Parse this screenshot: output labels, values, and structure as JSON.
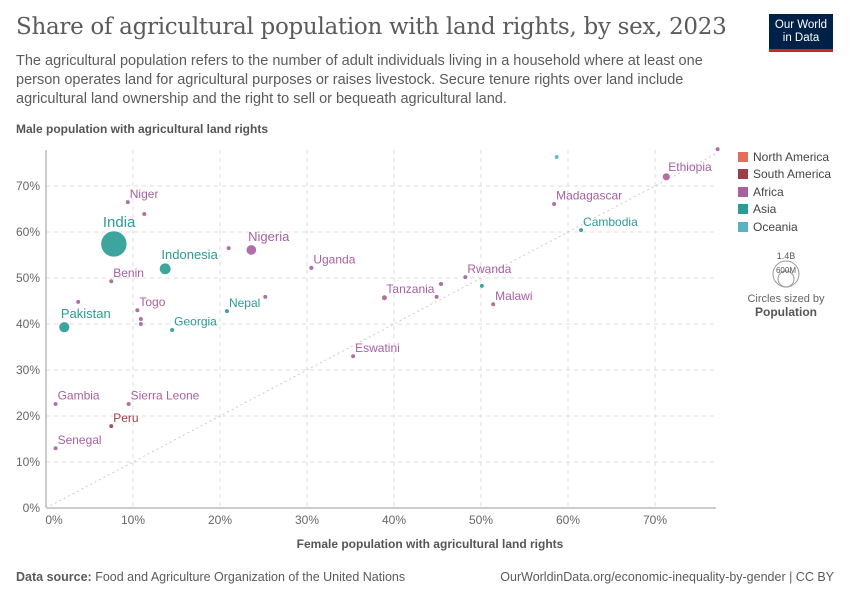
{
  "header": {
    "title": "Share of agricultural population with land rights, by sex, 2023",
    "subtitle": "The agricultural population refers to the number of adult individuals living in a household where at least one person operates land for agricultural purposes or raises livestock. Secure tenure rights over land include agricultural land ownership and the right to sell or bequeath agricultural land.",
    "logo": "Our World in Data"
  },
  "legend": {
    "items": [
      {
        "label": "North America",
        "color": "#E56E5A"
      },
      {
        "label": "South America",
        "color": "#9A3E4A"
      },
      {
        "label": "Africa",
        "color": "#A8609F"
      },
      {
        "label": "Asia",
        "color": "#2A9C94"
      },
      {
        "label": "Oceania",
        "color": "#5AB2C0"
      }
    ],
    "size_title": "Circles sized by",
    "size_var": "Population",
    "size_labels": [
      "1.4B",
      "600M"
    ]
  },
  "footer": {
    "source_label": "Data source:",
    "source": "Food and Agriculture Organization of the United Nations",
    "url": "OurWorldinData.org/economic-inequality-by-gender | CC BY"
  },
  "chart_data": {
    "type": "scatter",
    "xlabel": "Female population with agricultural land rights",
    "ylabel": "Male population with agricultural land rights",
    "xlim": [
      0,
      77
    ],
    "ylim": [
      0,
      78
    ],
    "xticks": [
      "0%",
      "10%",
      "20%",
      "30%",
      "40%",
      "50%",
      "60%",
      "70%"
    ],
    "yticks": [
      "0%",
      "10%",
      "20%",
      "30%",
      "40%",
      "50%",
      "60%",
      "70%"
    ],
    "grid": true,
    "reference_line": "y = x",
    "legend_placement": "right",
    "points": [
      {
        "label": "India",
        "region": "Asia",
        "x": 7.8,
        "y": 57.4,
        "pop": 1400
      },
      {
        "label": "Niger",
        "region": "Africa",
        "x": 9.4,
        "y": 66.5,
        "pop": 26
      },
      {
        "label": "",
        "region": "Africa",
        "x": 11.3,
        "y": 63.9,
        "pop": 20
      },
      {
        "label": "Benin",
        "region": "Africa",
        "x": 7.5,
        "y": 49.3,
        "pop": 13
      },
      {
        "label": "Indonesia",
        "region": "Asia",
        "x": 13.7,
        "y": 52.0,
        "pop": 275
      },
      {
        "label": "Nigeria",
        "region": "Africa",
        "x": 23.6,
        "y": 56.1,
        "pop": 220
      },
      {
        "label": "",
        "region": "Africa",
        "x": 21.0,
        "y": 56.5,
        "pop": 25
      },
      {
        "label": "Uganda",
        "region": "Africa",
        "x": 30.5,
        "y": 52.2,
        "pop": 48
      },
      {
        "label": "Pakistan",
        "region": "Asia",
        "x": 2.1,
        "y": 39.3,
        "pop": 240
      },
      {
        "label": "",
        "region": "Africa",
        "x": 3.7,
        "y": 44.8,
        "pop": 20
      },
      {
        "label": "Togo",
        "region": "Africa",
        "x": 10.5,
        "y": 43.0,
        "pop": 9
      },
      {
        "label": "",
        "region": "Africa",
        "x": 10.9,
        "y": 41.1,
        "pop": 8
      },
      {
        "label": "",
        "region": "Africa",
        "x": 10.9,
        "y": 40.0,
        "pop": 8
      },
      {
        "label": "Georgia",
        "region": "Asia",
        "x": 14.5,
        "y": 38.7,
        "pop": 4
      },
      {
        "label": "Nepal",
        "region": "Asia",
        "x": 20.8,
        "y": 42.8,
        "pop": 30
      },
      {
        "label": "",
        "region": "Africa",
        "x": 25.2,
        "y": 45.9,
        "pop": 6
      },
      {
        "label": "Gambia",
        "region": "Africa",
        "x": 1.1,
        "y": 22.6,
        "pop": 3
      },
      {
        "label": "Sierra Leone",
        "region": "Africa",
        "x": 9.5,
        "y": 22.6,
        "pop": 8
      },
      {
        "label": "Peru",
        "region": "South America",
        "x": 7.5,
        "y": 17.8,
        "pop": 34
      },
      {
        "label": "Senegal",
        "region": "Africa",
        "x": 1.1,
        "y": 13.0,
        "pop": 17
      },
      {
        "label": "Eswatini",
        "region": "Africa",
        "x": 35.3,
        "y": 33.0,
        "pop": 1
      },
      {
        "label": "Tanzania",
        "region": "Africa",
        "x": 38.9,
        "y": 45.7,
        "pop": 65
      },
      {
        "label": "",
        "region": "Africa",
        "x": 44.9,
        "y": 45.9,
        "pop": 6
      },
      {
        "label": "",
        "region": "Africa",
        "x": 45.4,
        "y": 48.7,
        "pop": 50
      },
      {
        "label": "Rwanda",
        "region": "Africa",
        "x": 48.2,
        "y": 50.2,
        "pop": 14
      },
      {
        "label": "",
        "region": "Asia",
        "x": 50.1,
        "y": 48.3,
        "pop": 6
      },
      {
        "label": "Malawi",
        "region": "Africa",
        "x": 51.4,
        "y": 44.3,
        "pop": 20
      },
      {
        "label": "Madagascar",
        "region": "Africa",
        "x": 58.4,
        "y": 66.1,
        "pop": 30
      },
      {
        "label": "",
        "region": "Oceania",
        "x": 58.7,
        "y": 76.3,
        "pop": 1
      },
      {
        "label": "Cambodia",
        "region": "Asia",
        "x": 61.5,
        "y": 60.4,
        "pop": 17
      },
      {
        "label": "Ethiopia",
        "region": "Africa",
        "x": 71.3,
        "y": 72.0,
        "pop": 125
      },
      {
        "label": "",
        "region": "Africa",
        "x": 77.2,
        "y": 78.0,
        "pop": 14
      }
    ]
  }
}
